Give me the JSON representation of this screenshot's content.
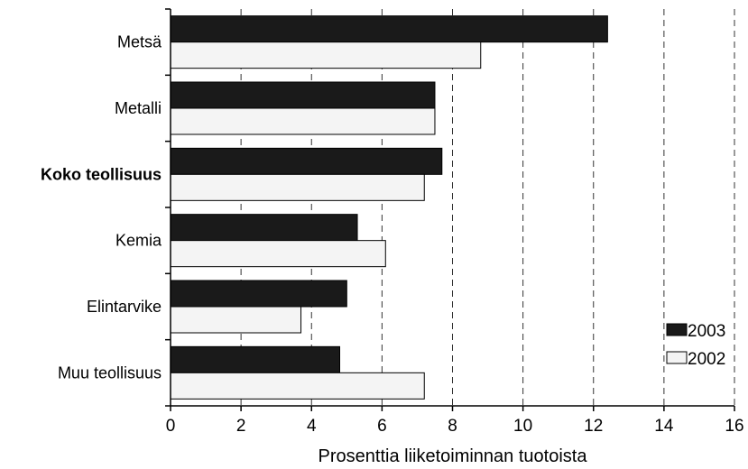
{
  "chart_data": {
    "type": "bar",
    "orientation": "horizontal",
    "categories": [
      "Metsä",
      "Metalli",
      "Koko teollisuus",
      "Kemia",
      "Elintarvike",
      "Muu teollisuus"
    ],
    "emphasized_category": "Koko teollisuus",
    "series": [
      {
        "name": "2003",
        "values": [
          12.4,
          7.5,
          7.7,
          5.3,
          5.0,
          4.8
        ],
        "color": "#1a1a1a"
      },
      {
        "name": "2002",
        "values": [
          8.8,
          7.5,
          7.2,
          6.1,
          3.7,
          7.2
        ],
        "color": "#f4f4f4"
      }
    ],
    "title": "",
    "xlabel": "Prosenttia liiketoiminnan tuotoista",
    "ylabel": "",
    "xlim": [
      0,
      16
    ],
    "xticks": [
      0,
      2,
      4,
      6,
      8,
      10,
      12,
      14,
      16
    ],
    "grid": "vertical dashed",
    "legend": {
      "position": "bottom-right",
      "entries": [
        "2003",
        "2002"
      ]
    }
  }
}
